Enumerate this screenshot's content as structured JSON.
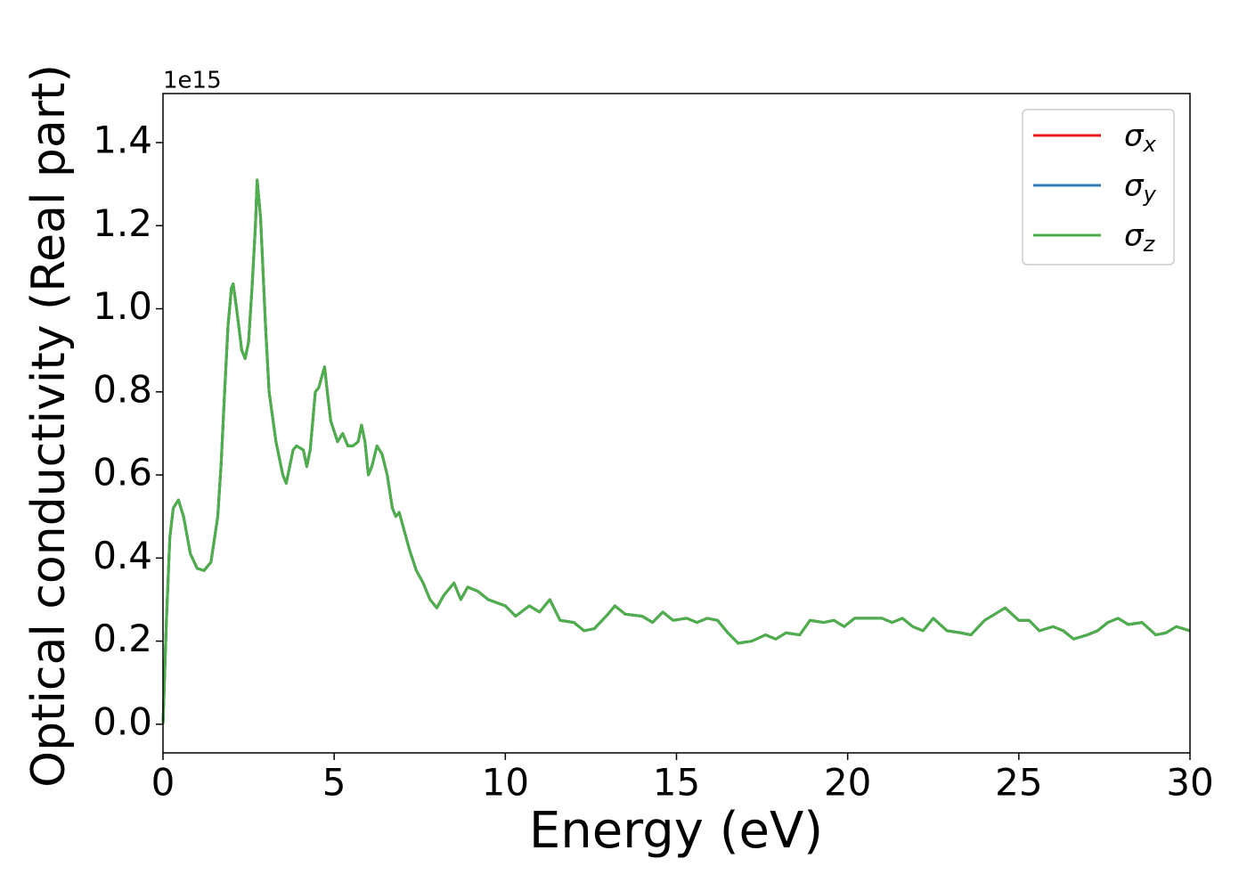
{
  "chart_data": {
    "type": "line",
    "xlabel": "Energy (eV)",
    "ylabel": "Optical conductivity (Real part)",
    "y_offset_text": "1e15",
    "x": [
      0,
      0.1,
      0.2,
      0.3,
      0.45,
      0.6,
      0.8,
      1.0,
      1.2,
      1.4,
      1.6,
      1.7,
      1.8,
      1.9,
      2.0,
      2.05,
      2.15,
      2.3,
      2.4,
      2.5,
      2.6,
      2.7,
      2.75,
      2.85,
      3.0,
      3.1,
      3.3,
      3.5,
      3.6,
      3.8,
      3.9,
      4.1,
      4.2,
      4.3,
      4.45,
      4.55,
      4.65,
      4.72,
      4.8,
      4.9,
      5.1,
      5.25,
      5.4,
      5.55,
      5.7,
      5.8,
      5.9,
      6.0,
      6.1,
      6.25,
      6.4,
      6.55,
      6.7,
      6.8,
      6.9,
      7.0,
      7.2,
      7.4,
      7.6,
      7.8,
      8.0,
      8.2,
      8.4,
      8.5,
      8.7,
      8.9,
      9.2,
      9.5,
      10.0,
      10.3,
      10.7,
      11.0,
      11.3,
      11.6,
      12.0,
      12.3,
      12.6,
      13.0,
      13.2,
      13.5,
      14.0,
      14.3,
      14.6,
      14.9,
      15.3,
      15.6,
      15.9,
      16.2,
      16.5,
      16.8,
      17.2,
      17.6,
      17.9,
      18.2,
      18.6,
      18.9,
      19.3,
      19.6,
      19.9,
      20.2,
      20.6,
      21.0,
      21.3,
      21.6,
      21.9,
      22.2,
      22.5,
      22.9,
      23.3,
      23.6,
      24.0,
      24.3,
      24.6,
      25.0,
      25.3,
      25.6,
      26.0,
      26.3,
      26.6,
      27.0,
      27.3,
      27.6,
      27.9,
      28.2,
      28.6,
      29.0,
      29.3,
      29.6,
      30.0
    ],
    "series": [
      {
        "name": "σx",
        "color": "#e41a1c",
        "values": [
          0,
          0.25,
          0.45,
          0.52,
          0.54,
          0.5,
          0.41,
          0.375,
          0.37,
          0.39,
          0.5,
          0.63,
          0.8,
          0.96,
          1.05,
          1.06,
          1.0,
          0.9,
          0.88,
          0.92,
          1.05,
          1.2,
          1.31,
          1.22,
          0.95,
          0.8,
          0.68,
          0.6,
          0.58,
          0.66,
          0.67,
          0.66,
          0.62,
          0.66,
          0.8,
          0.81,
          0.84,
          0.86,
          0.8,
          0.73,
          0.68,
          0.7,
          0.67,
          0.67,
          0.68,
          0.72,
          0.68,
          0.6,
          0.62,
          0.67,
          0.65,
          0.6,
          0.52,
          0.5,
          0.51,
          0.48,
          0.42,
          0.37,
          0.34,
          0.3,
          0.28,
          0.31,
          0.33,
          0.34,
          0.3,
          0.33,
          0.32,
          0.3,
          0.285,
          0.26,
          0.285,
          0.27,
          0.3,
          0.25,
          0.245,
          0.225,
          0.23,
          0.265,
          0.285,
          0.265,
          0.26,
          0.245,
          0.27,
          0.25,
          0.255,
          0.245,
          0.255,
          0.25,
          0.22,
          0.195,
          0.2,
          0.215,
          0.205,
          0.22,
          0.215,
          0.25,
          0.245,
          0.25,
          0.235,
          0.255,
          0.255,
          0.255,
          0.245,
          0.255,
          0.235,
          0.225,
          0.255,
          0.225,
          0.22,
          0.215,
          0.25,
          0.265,
          0.28,
          0.25,
          0.25,
          0.225,
          0.235,
          0.225,
          0.205,
          0.215,
          0.225,
          0.245,
          0.255,
          0.24,
          0.245,
          0.215,
          0.22,
          0.235,
          0.225
        ]
      },
      {
        "name": "σy",
        "color": "#377eb8",
        "values": [
          0,
          0.25,
          0.45,
          0.52,
          0.54,
          0.5,
          0.41,
          0.375,
          0.37,
          0.39,
          0.5,
          0.63,
          0.8,
          0.96,
          1.05,
          1.06,
          1.0,
          0.9,
          0.88,
          0.92,
          1.05,
          1.2,
          1.31,
          1.22,
          0.95,
          0.8,
          0.68,
          0.6,
          0.58,
          0.66,
          0.67,
          0.66,
          0.62,
          0.66,
          0.8,
          0.81,
          0.84,
          0.86,
          0.8,
          0.73,
          0.68,
          0.7,
          0.67,
          0.67,
          0.68,
          0.72,
          0.68,
          0.6,
          0.62,
          0.67,
          0.65,
          0.6,
          0.52,
          0.5,
          0.51,
          0.48,
          0.42,
          0.37,
          0.34,
          0.3,
          0.28,
          0.31,
          0.33,
          0.34,
          0.3,
          0.33,
          0.32,
          0.3,
          0.285,
          0.26,
          0.285,
          0.27,
          0.3,
          0.25,
          0.245,
          0.225,
          0.23,
          0.265,
          0.285,
          0.265,
          0.26,
          0.245,
          0.27,
          0.25,
          0.255,
          0.245,
          0.255,
          0.25,
          0.22,
          0.195,
          0.2,
          0.215,
          0.205,
          0.22,
          0.215,
          0.25,
          0.245,
          0.25,
          0.235,
          0.255,
          0.255,
          0.255,
          0.245,
          0.255,
          0.235,
          0.225,
          0.255,
          0.225,
          0.22,
          0.215,
          0.25,
          0.265,
          0.28,
          0.25,
          0.25,
          0.225,
          0.235,
          0.225,
          0.205,
          0.215,
          0.225,
          0.245,
          0.255,
          0.24,
          0.245,
          0.215,
          0.22,
          0.235,
          0.225
        ]
      },
      {
        "name": "σz",
        "color": "#4daf4a",
        "values": [
          0,
          0.25,
          0.45,
          0.52,
          0.54,
          0.5,
          0.41,
          0.375,
          0.37,
          0.39,
          0.5,
          0.63,
          0.8,
          0.96,
          1.05,
          1.06,
          1.0,
          0.9,
          0.88,
          0.92,
          1.05,
          1.2,
          1.31,
          1.22,
          0.95,
          0.8,
          0.68,
          0.6,
          0.58,
          0.66,
          0.67,
          0.66,
          0.62,
          0.66,
          0.8,
          0.81,
          0.84,
          0.86,
          0.8,
          0.73,
          0.68,
          0.7,
          0.67,
          0.67,
          0.68,
          0.72,
          0.68,
          0.6,
          0.62,
          0.67,
          0.65,
          0.6,
          0.52,
          0.5,
          0.51,
          0.48,
          0.42,
          0.37,
          0.34,
          0.3,
          0.28,
          0.31,
          0.33,
          0.34,
          0.3,
          0.33,
          0.32,
          0.3,
          0.285,
          0.26,
          0.285,
          0.27,
          0.3,
          0.25,
          0.245,
          0.225,
          0.23,
          0.265,
          0.285,
          0.265,
          0.26,
          0.245,
          0.27,
          0.25,
          0.255,
          0.245,
          0.255,
          0.25,
          0.22,
          0.195,
          0.2,
          0.215,
          0.205,
          0.22,
          0.215,
          0.25,
          0.245,
          0.25,
          0.235,
          0.255,
          0.255,
          0.255,
          0.245,
          0.255,
          0.235,
          0.225,
          0.255,
          0.225,
          0.22,
          0.215,
          0.25,
          0.265,
          0.28,
          0.25,
          0.25,
          0.225,
          0.235,
          0.225,
          0.205,
          0.215,
          0.225,
          0.245,
          0.255,
          0.24,
          0.245,
          0.215,
          0.22,
          0.235,
          0.225
        ]
      }
    ],
    "xlim": [
      0,
      30
    ],
    "xticks": [
      0,
      5,
      10,
      15,
      20,
      25,
      30
    ],
    "ylim": [
      -0.069,
      1.518
    ],
    "yticks": [
      {
        "value": 0,
        "label": "0.0"
      },
      0.2,
      0.4,
      0.6,
      0.8,
      {
        "value": 1,
        "label": "1.0"
      },
      1.2,
      1.4
    ],
    "grid": false,
    "legend": "upper right"
  }
}
